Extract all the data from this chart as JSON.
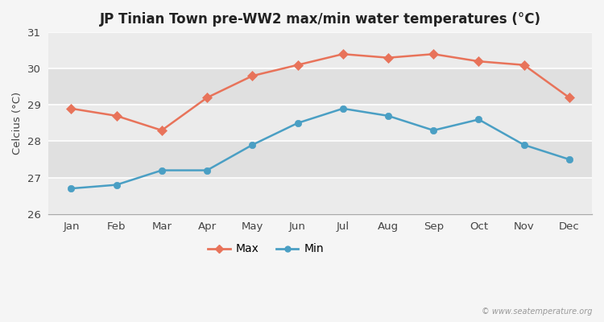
{
  "title": "JP Tinian Town pre-WW2 max/min water temperatures (°C)",
  "ylabel": "Celcius (°C)",
  "months": [
    "Jan",
    "Feb",
    "Mar",
    "Apr",
    "May",
    "Jun",
    "Jul",
    "Aug",
    "Sep",
    "Oct",
    "Nov",
    "Dec"
  ],
  "max_temps": [
    28.9,
    28.7,
    28.3,
    29.2,
    29.8,
    30.1,
    30.4,
    30.3,
    30.4,
    30.2,
    30.1,
    29.2
  ],
  "min_temps": [
    26.7,
    26.8,
    27.2,
    27.2,
    27.9,
    28.5,
    28.9,
    28.7,
    28.3,
    28.6,
    27.9,
    27.5
  ],
  "max_color": "#e8735a",
  "min_color": "#4a9fc4",
  "ylim": [
    26,
    31
  ],
  "yticks": [
    26,
    27,
    28,
    29,
    30,
    31
  ],
  "bg_color": "#f5f5f5",
  "band_dark": "#e0e0e0",
  "band_light": "#ebebeb",
  "watermark": "© www.seatemperature.org",
  "legend_max": "Max",
  "legend_min": "Min"
}
